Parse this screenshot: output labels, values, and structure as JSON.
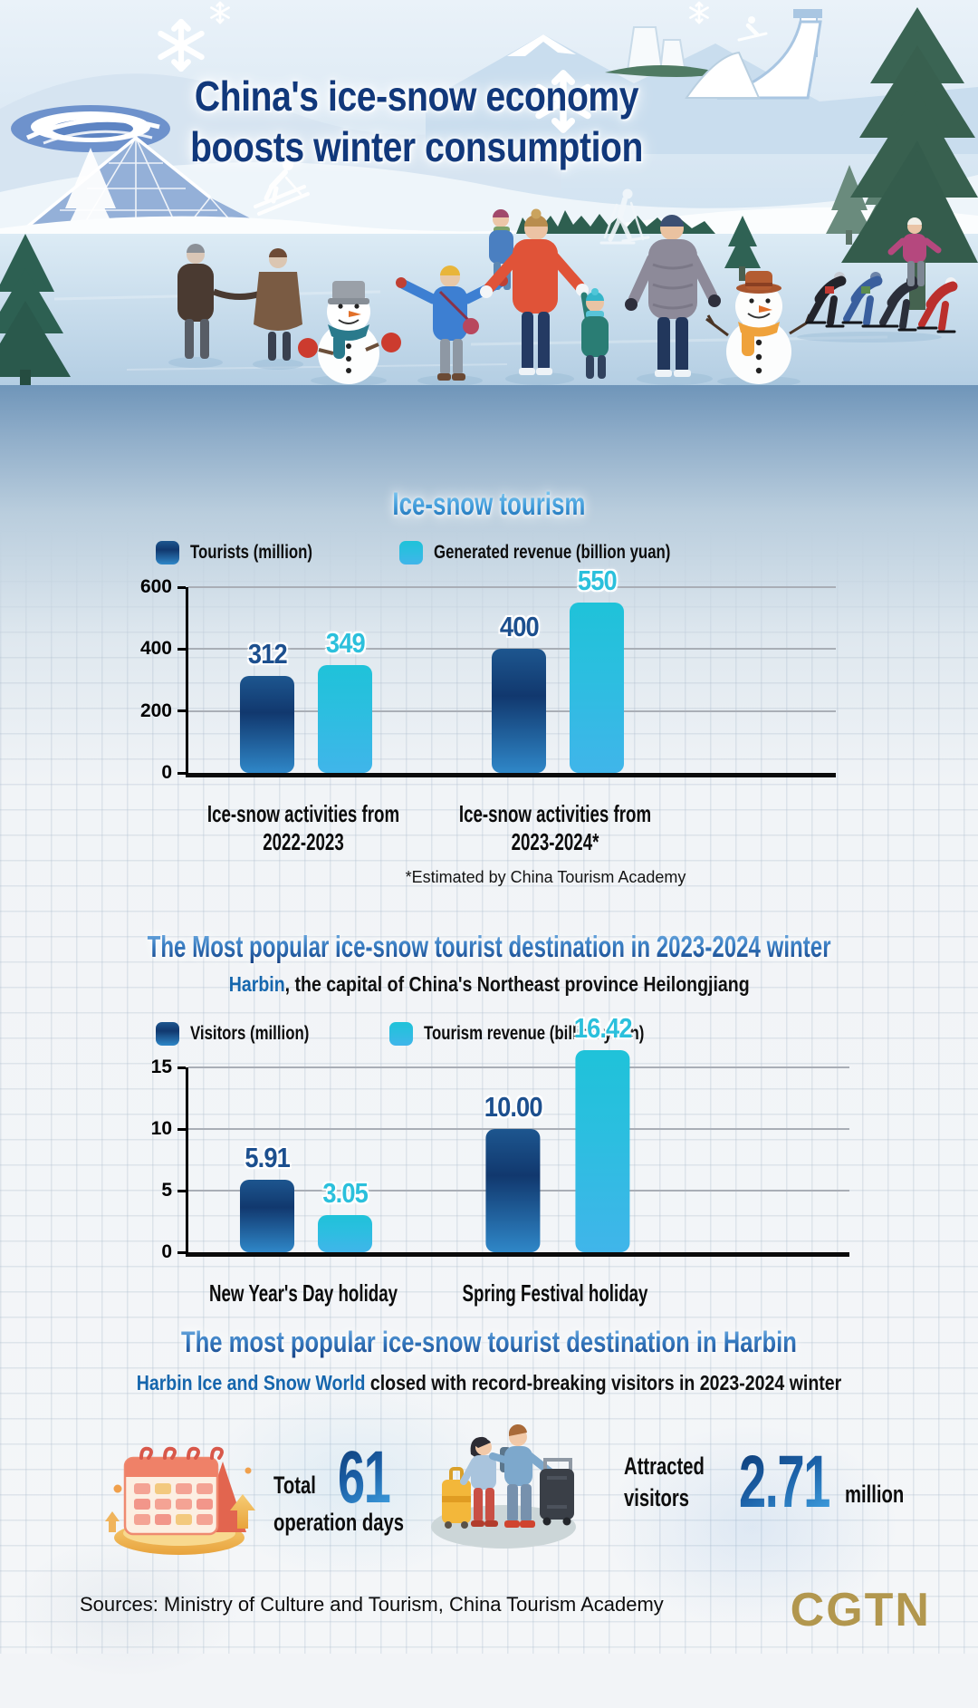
{
  "header": {
    "title_line1": "China's ice-snow economy",
    "title_line2": "boosts winter consumption"
  },
  "tourism_section": {
    "heading": "Ice-snow tourism",
    "footnote": "*Estimated by China Tourism Academy"
  },
  "harbin_section": {
    "heading": "The Most popular ice-snow tourist destination in 2023-2024 winter",
    "subtitle_highlight": "Harbin",
    "subtitle_rest": ", the capital of China's Northeast province Heilongjiang"
  },
  "world_section": {
    "heading": "The most popular ice-snow tourist destination in Harbin",
    "subtitle_highlight": "Harbin Ice and Snow World",
    "subtitle_rest": " closed with record-breaking visitors in 2023-2024 winter",
    "stat_days": {
      "prefix": "Total",
      "value": "61",
      "suffix": "operation days"
    },
    "stat_visitors": {
      "prefix_line1": "Attracted",
      "prefix_line2": "visitors",
      "value": "2.71",
      "suffix": "million"
    }
  },
  "footer": {
    "sources": "Sources: Ministry of Culture and Tourism, China Tourism Academy",
    "logo": "CGTN",
    "logo_color": "#b2974e"
  },
  "colors": {
    "title_navy": "#11387b",
    "accent_dark_blue": "#11386e",
    "accent_cyan": "#2abfdf",
    "heading_gradient_top": "#7ab6e8",
    "heading_gradient_bottom": "#133d80",
    "band_blue": "#6f95b9"
  },
  "chart_data": [
    {
      "type": "bar",
      "title": "Ice-snow tourism",
      "categories": [
        "Ice-snow activities from 2022-2023",
        "Ice-snow activities from 2023-2024*"
      ],
      "series": [
        {
          "name": "Tourists (million)",
          "values": [
            312,
            400
          ],
          "value_labels": [
            "312",
            "400"
          ],
          "color_top": "#1d568f",
          "color_mid": "#11386e",
          "color_bottom": "#2f87c8",
          "label_color": "#1c4f8e"
        },
        {
          "name": "Generated revenue (billion yuan)",
          "values": [
            349,
            550
          ],
          "value_labels": [
            "349",
            "550"
          ],
          "color_top": "#1fc2d9",
          "color_mid": "#2abfdf",
          "color_bottom": "#40b5ea",
          "label_color": "#2bc0dc"
        }
      ],
      "xlabel": "",
      "ylabel": "",
      "ylim": [
        0,
        600
      ],
      "yticks": [
        0,
        200,
        400,
        600
      ],
      "grid": true,
      "legend_position": "top",
      "footnote": "*Estimated by China Tourism Academy"
    },
    {
      "type": "bar",
      "title": "The Most popular ice-snow tourist destination in 2023-2024 winter",
      "categories": [
        "New Year's Day holiday",
        "Spring Festival holiday"
      ],
      "series": [
        {
          "name": "Visitors (million)",
          "values": [
            5.91,
            10.0
          ],
          "value_labels": [
            "5.91",
            "10.00"
          ],
          "color_top": "#1d568f",
          "color_mid": "#11386e",
          "color_bottom": "#2f87c8",
          "label_color": "#1c4f8e"
        },
        {
          "name": "Tourism revenue (billion yuan)",
          "values": [
            3.05,
            16.42
          ],
          "value_labels": [
            "3.05",
            "16.42"
          ],
          "color_top": "#1fc2d9",
          "color_mid": "#2abfdf",
          "color_bottom": "#40b5ea",
          "label_color": "#2bc0dc"
        }
      ],
      "xlabel": "",
      "ylabel": "",
      "ylim": [
        0,
        15
      ],
      "yticks": [
        0,
        5,
        10,
        15
      ],
      "grid": true,
      "legend_position": "top"
    }
  ]
}
